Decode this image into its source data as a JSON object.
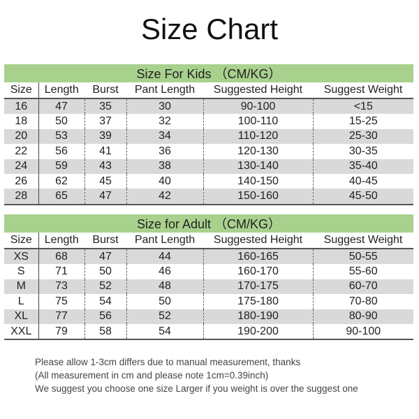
{
  "title": "Size Chart",
  "columns": [
    "Size",
    "Length",
    "Burst",
    "Pant Length",
    "Suggested Height",
    "Suggest Weight"
  ],
  "colors": {
    "header_green": "#a9d18e",
    "row_gray": "#d9d9d9"
  },
  "kids": {
    "caption": "Size For Kids （CM/KG）",
    "rows": [
      [
        "16",
        "47",
        "35",
        "30",
        "90-100",
        "<15"
      ],
      [
        "18",
        "50",
        "37",
        "32",
        "100-110",
        "15-25"
      ],
      [
        "20",
        "53",
        "39",
        "34",
        "110-120",
        "25-30"
      ],
      [
        "22",
        "56",
        "41",
        "36",
        "120-130",
        "30-35"
      ],
      [
        "24",
        "59",
        "43",
        "38",
        "130-140",
        "35-40"
      ],
      [
        "26",
        "62",
        "45",
        "40",
        "140-150",
        "40-45"
      ],
      [
        "28",
        "65",
        "47",
        "42",
        "150-160",
        "45-50"
      ]
    ]
  },
  "adult": {
    "caption": "Size for Adult （CM/KG）",
    "rows": [
      [
        "XS",
        "68",
        "47",
        "44",
        "160-165",
        "50-55"
      ],
      [
        "S",
        "71",
        "50",
        "46",
        "160-170",
        "55-60"
      ],
      [
        "M",
        "73",
        "52",
        "48",
        "170-175",
        "60-70"
      ],
      [
        "L",
        "75",
        "54",
        "50",
        "175-180",
        "70-80"
      ],
      [
        "XL",
        "77",
        "56",
        "52",
        "180-190",
        "80-90"
      ],
      [
        "XXL",
        "79",
        "58",
        "54",
        "190-200",
        "90-100"
      ]
    ]
  },
  "notes": [
    "Please allow 1-3cm differs due to manual measurement, thanks",
    "(All measurement in cm and please note 1cm=0.39inch)",
    "We suggest you choose one size Larger if you weight is over the suggest one"
  ]
}
